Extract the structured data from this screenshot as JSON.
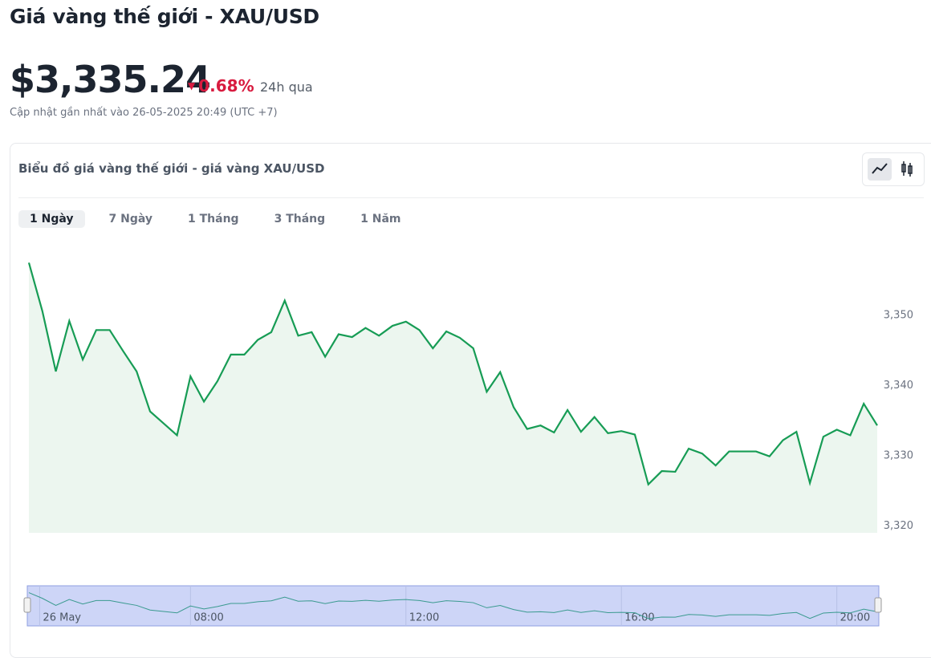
{
  "header": {
    "title": "Giá vàng thế giới - XAU/USD",
    "price": "$3,335.24",
    "change": "0.68%",
    "change_period": "24h qua",
    "updated": "Cập nhật gần nhất vào 26-05-2025 20:49 (UTC +7)"
  },
  "card": {
    "title": "Biểu đồ giá vàng thế giới - giá vàng XAU/USD",
    "tabs": [
      "1 Ngày",
      "7 Ngày",
      "1 Tháng",
      "3 Tháng",
      "1 Năm"
    ]
  },
  "chart_data": {
    "type": "line",
    "color": "#179c55",
    "x": [
      5,
      5.25,
      5.5,
      5.75,
      6,
      6.25,
      6.5,
      6.75,
      7,
      7.25,
      7.5,
      7.75,
      8,
      8.25,
      8.5,
      8.75,
      9,
      9.25,
      9.5,
      9.75,
      10,
      10.25,
      10.5,
      10.75,
      11,
      11.25,
      11.5,
      11.75,
      12,
      12.25,
      12.5,
      12.75,
      13,
      13.25,
      13.5,
      13.75,
      14,
      14.25,
      14.5,
      14.75,
      15,
      15.25,
      15.5,
      15.75,
      16,
      16.25,
      16.5,
      16.75,
      17,
      17.25,
      17.5,
      17.75,
      18,
      18.25,
      18.5,
      18.75,
      19,
      19.25,
      19.5,
      19.75,
      20,
      20.25,
      20.5,
      20.75
    ],
    "values": [
      3357.5,
      3350.6,
      3342.0,
      3349.2,
      3343.7,
      3347.9,
      3347.9,
      3344.9,
      3342.0,
      3336.3,
      3334.6,
      3332.9,
      3341.3,
      3337.7,
      3340.6,
      3344.4,
      3344.4,
      3346.5,
      3347.6,
      3352.1,
      3347.1,
      3347.6,
      3344.1,
      3347.3,
      3346.9,
      3348.2,
      3347.1,
      3348.5,
      3349.1,
      3347.9,
      3345.3,
      3347.7,
      3346.8,
      3345.3,
      3339.1,
      3341.9,
      3336.9,
      3333.8,
      3334.3,
      3333.3,
      3336.5,
      3333.4,
      3335.5,
      3333.2,
      3333.5,
      3333.0,
      3325.9,
      3327.8,
      3327.7,
      3331.0,
      3330.3,
      3328.6,
      3330.6,
      3330.6,
      3330.6,
      3329.9,
      3332.2,
      3333.4,
      3326.1,
      3332.7,
      3333.7,
      3332.9,
      3337.4,
      3334.3
    ],
    "xlim": [
      5,
      20.75
    ],
    "ylim": [
      3319,
      3360
    ],
    "yticks": [
      {
        "value": 3350,
        "label": "3,350"
      },
      {
        "value": 3340,
        "label": "3,340"
      },
      {
        "value": 3330,
        "label": "3,330"
      },
      {
        "value": 3320,
        "label": "3,320"
      }
    ],
    "xticks": [
      {
        "value": 5.2,
        "label": "26 May"
      },
      {
        "value": 8,
        "label": "08:00"
      },
      {
        "value": 12,
        "label": "12:00"
      },
      {
        "value": 16,
        "label": "16:00"
      },
      {
        "value": 20,
        "label": "20:00"
      }
    ]
  }
}
